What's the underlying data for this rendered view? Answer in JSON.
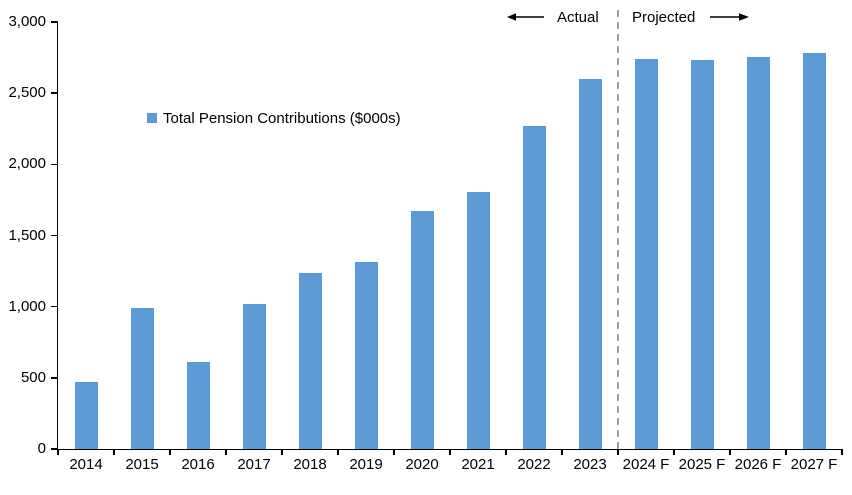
{
  "chart_data": {
    "type": "bar",
    "title": "",
    "legend_label": "Total Pension Contributions ($000s)",
    "categories": [
      "2014",
      "2015",
      "2016",
      "2017",
      "2018",
      "2019",
      "2020",
      "2021",
      "2022",
      "2023",
      "2024 F",
      "2025 F",
      "2026 F",
      "2027 F"
    ],
    "values": [
      470,
      990,
      610,
      1020,
      1235,
      1315,
      1675,
      1805,
      2270,
      2600,
      2740,
      2735,
      2755,
      2785
    ],
    "xlabel": "",
    "ylabel": "",
    "ylim": [
      0,
      3000
    ],
    "ytick_step": 500,
    "ytick_labels": [
      "0",
      "500",
      "1,000",
      "1,500",
      "2,000",
      "2,500",
      "3,000"
    ],
    "grid": false,
    "bar_color": "#5B9BD5",
    "axis_color": "#000000",
    "legend_position": "inside-upper-left",
    "divider": {
      "style": "dashed",
      "color": "#A0A0A0",
      "between": [
        "2023",
        "2024 F"
      ]
    },
    "annotations": {
      "actual_label": "Actual",
      "projected_label": "Projected",
      "actual_side": "left-of-divider",
      "projected_side": "right-of-divider"
    }
  }
}
